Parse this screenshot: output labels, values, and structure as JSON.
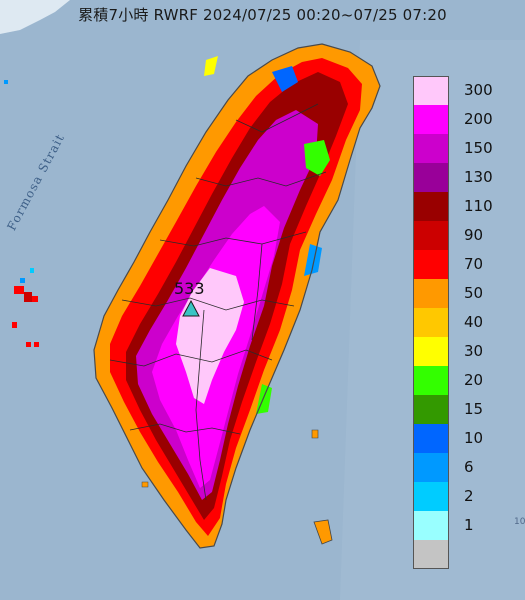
{
  "title": {
    "text": "累積7小時 RWRF 2024/07/25 00:20~07/25 07:20"
  },
  "map": {
    "strait_label": "Formosa Strait",
    "max_value_label": "533",
    "corner_label": "10",
    "colors": {
      "sea": "#9bb6cf",
      "land": "#dce7ef",
      "coast": "#4a4a4a",
      "county_line": "#2a2a2a",
      "max_marker": "#39c4c4"
    }
  },
  "legend": {
    "bins": [
      {
        "label": "300",
        "color": "#ffc8fa"
      },
      {
        "label": "200",
        "color": "#ff00ff"
      },
      {
        "label": "150",
        "color": "#cc00cc"
      },
      {
        "label": "130",
        "color": "#990099"
      },
      {
        "label": "110",
        "color": "#990000"
      },
      {
        "label": "90",
        "color": "#cc0000"
      },
      {
        "label": "70",
        "color": "#ff0000"
      },
      {
        "label": "50",
        "color": "#ff9900"
      },
      {
        "label": "40",
        "color": "#ffc800"
      },
      {
        "label": "30",
        "color": "#ffff00"
      },
      {
        "label": "20",
        "color": "#33ff00"
      },
      {
        "label": "15",
        "color": "#339900"
      },
      {
        "label": "10",
        "color": "#0066ff"
      },
      {
        "label": "6",
        "color": "#0099ff"
      },
      {
        "label": "2",
        "color": "#00ccff"
      },
      {
        "label": "1",
        "color": "#99ffff"
      },
      {
        "label": "",
        "color": "#c4c4c4"
      }
    ]
  }
}
